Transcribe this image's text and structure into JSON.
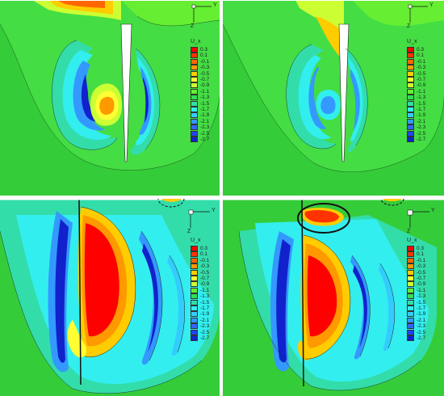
{
  "colormap": {
    "title": "U_x",
    "ticks": [
      "0.3",
      "0.1",
      "-0.1",
      "-0.3",
      "-0.5",
      "-0.7",
      "-0.9",
      "-1.1",
      "-1.3",
      "-1.5",
      "-1.7",
      "-1.9",
      "-2.1",
      "-2.3",
      "-2.5",
      "-2.7"
    ],
    "colors": [
      "#ff0000",
      "#ff3300",
      "#ff6600",
      "#ff9900",
      "#ffcc00",
      "#ffff33",
      "#ccff33",
      "#66ee33",
      "#33dd55",
      "#33ddaa",
      "#33eeee",
      "#33ccff",
      "#3399ff",
      "#3366ff",
      "#2244ee",
      "#1122cc"
    ]
  },
  "axes": {
    "y": "Y",
    "z": "Z"
  },
  "panels": [
    {
      "id": "top-left"
    },
    {
      "id": "top-right"
    },
    {
      "id": "bottom-left"
    },
    {
      "id": "bottom-right"
    }
  ]
}
